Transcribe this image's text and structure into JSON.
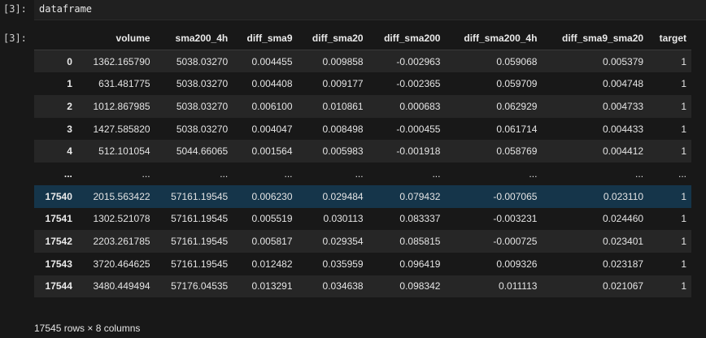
{
  "cell": {
    "in_prompt": "[3]:",
    "out_prompt": "[3]:",
    "code": "dataframe"
  },
  "table": {
    "columns": [
      "",
      "volume",
      "sma200_4h",
      "diff_sma9",
      "diff_sma20",
      "diff_sma200",
      "diff_sma200_4h",
      "diff_sma9_sma20",
      "target"
    ],
    "rows": [
      [
        "0",
        "1362.165790",
        "5038.03270",
        "0.004455",
        "0.009858",
        "-0.002963",
        "0.059068",
        "0.005379",
        "1"
      ],
      [
        "1",
        "631.481775",
        "5038.03270",
        "0.004408",
        "0.009177",
        "-0.002365",
        "0.059709",
        "0.004748",
        "1"
      ],
      [
        "2",
        "1012.867985",
        "5038.03270",
        "0.006100",
        "0.010861",
        "0.000683",
        "0.062929",
        "0.004733",
        "1"
      ],
      [
        "3",
        "1427.585820",
        "5038.03270",
        "0.004047",
        "0.008498",
        "-0.000455",
        "0.061714",
        "0.004433",
        "1"
      ],
      [
        "4",
        "512.101054",
        "5044.66065",
        "0.001564",
        "0.005983",
        "-0.001918",
        "0.058769",
        "0.004412",
        "1"
      ],
      [
        "...",
        "...",
        "...",
        "...",
        "...",
        "...",
        "...",
        "...",
        "..."
      ],
      [
        "17540",
        "2015.563422",
        "57161.19545",
        "0.006230",
        "0.029484",
        "0.079432",
        "-0.007065",
        "0.023110",
        "1"
      ],
      [
        "17541",
        "1302.521078",
        "57161.19545",
        "0.005519",
        "0.030113",
        "0.083337",
        "-0.003231",
        "0.024460",
        "1"
      ],
      [
        "17542",
        "2203.261785",
        "57161.19545",
        "0.005817",
        "0.029354",
        "0.085815",
        "-0.000725",
        "0.023401",
        "1"
      ],
      [
        "17543",
        "3720.464625",
        "57161.19545",
        "0.012482",
        "0.035959",
        "0.096419",
        "0.009326",
        "0.023187",
        "1"
      ],
      [
        "17544",
        "3480.449494",
        "57176.04535",
        "0.013291",
        "0.034638",
        "0.098342",
        "0.011113",
        "0.021067",
        "1"
      ]
    ],
    "selected_row_index": 6
  },
  "shape_text": "17545 rows × 8 columns"
}
